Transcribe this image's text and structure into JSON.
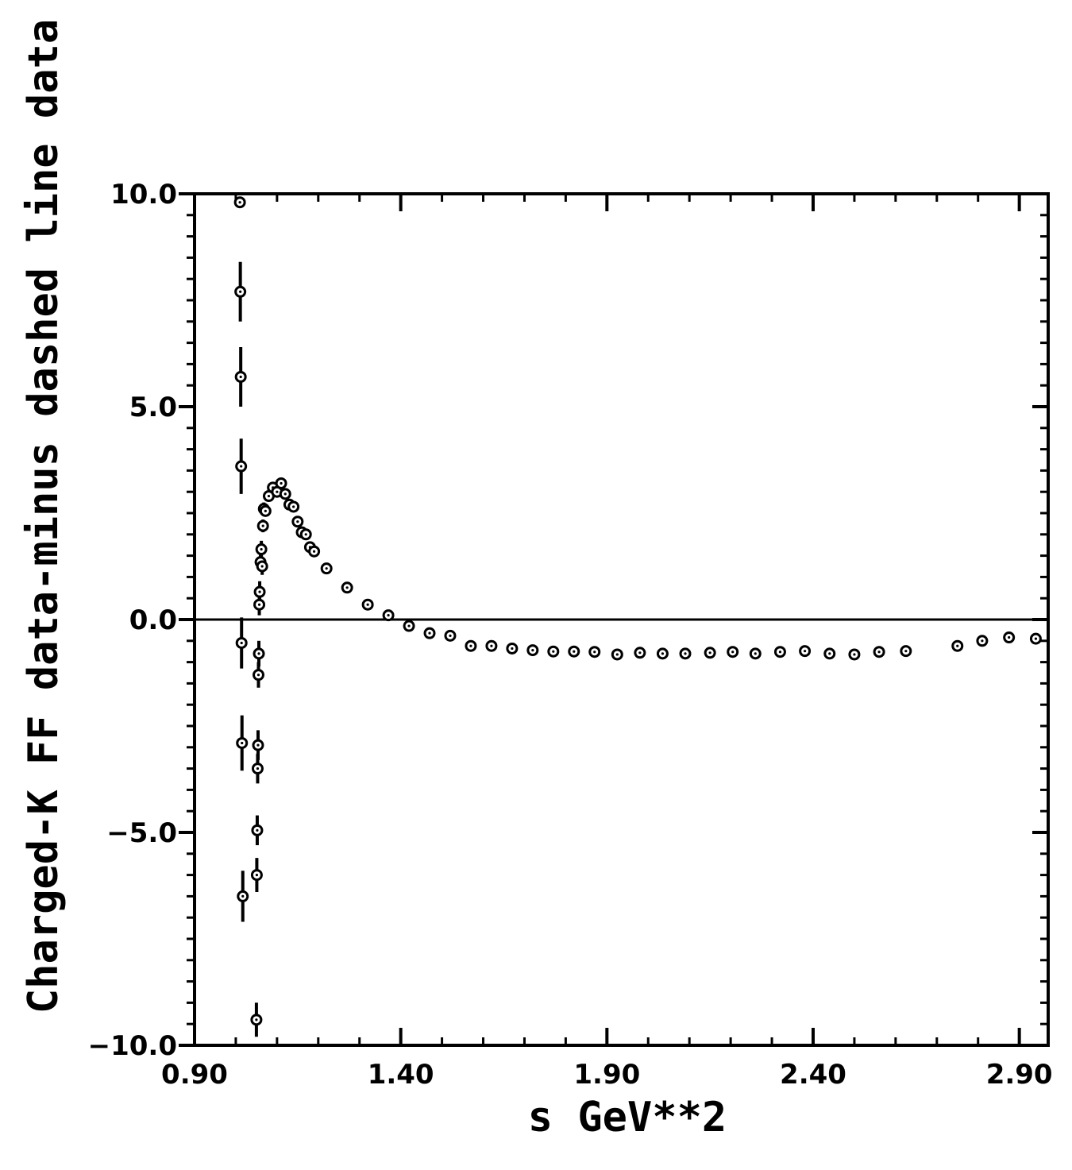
{
  "chart_data": {
    "type": "scatter",
    "title": "",
    "xlabel": "s GeV**2",
    "ylabel": "Charged-K FF data-minus dashed line data",
    "xlim": [
      0.9,
      2.97
    ],
    "ylim": [
      -10.0,
      10.0
    ],
    "x_ticks": [
      0.9,
      1.4,
      1.9,
      2.4,
      2.9
    ],
    "x_tick_labels": [
      "0.90",
      "1.40",
      "1.90",
      "2.40",
      "2.90"
    ],
    "y_ticks": [
      10.0,
      5.0,
      0.0,
      -5.0,
      -10.0
    ],
    "y_tick_labels": [
      "10.0",
      "5.0",
      "0.0",
      "−5.0",
      "−10.0"
    ],
    "grid": false,
    "legend": "none",
    "reference_line_y": 0.0,
    "marker_color": "#000000",
    "series": [
      {
        "points": [
          {
            "x": 1.01,
            "y": 9.8,
            "err": 0
          },
          {
            "x": 1.011,
            "y": 7.7,
            "err": 0.7
          },
          {
            "x": 1.012,
            "y": 5.7,
            "err": 0.7
          },
          {
            "x": 1.013,
            "y": 3.6,
            "err": 0.65
          },
          {
            "x": 1.014,
            "y": -0.55,
            "err": 0.6
          },
          {
            "x": 1.015,
            "y": -2.9,
            "err": 0.65
          },
          {
            "x": 1.017,
            "y": -6.5,
            "err": 0.6
          },
          {
            "x": 1.05,
            "y": -9.4,
            "err": 0.4
          },
          {
            "x": 1.051,
            "y": -6.0,
            "err": 0.4
          },
          {
            "x": 1.052,
            "y": -4.95,
            "err": 0.35
          },
          {
            "x": 1.053,
            "y": -3.5,
            "err": 0.35
          },
          {
            "x": 1.054,
            "y": -2.95,
            "err": 0.35
          },
          {
            "x": 1.055,
            "y": -1.3,
            "err": 0.3
          },
          {
            "x": 1.056,
            "y": -0.8,
            "err": 0.3
          },
          {
            "x": 1.057,
            "y": 0.35,
            "err": 0.25
          },
          {
            "x": 1.058,
            "y": 0.65,
            "err": 0.25
          },
          {
            "x": 1.06,
            "y": 1.35,
            "err": 0.2
          },
          {
            "x": 1.062,
            "y": 1.65,
            "err": 0.2
          },
          {
            "x": 1.064,
            "y": 1.25,
            "err": 0.2
          },
          {
            "x": 1.066,
            "y": 2.2,
            "err": 0.15
          },
          {
            "x": 1.068,
            "y": 2.6,
            "err": 0.15
          },
          {
            "x": 1.072,
            "y": 2.55,
            "err": 0.1
          },
          {
            "x": 1.08,
            "y": 2.9,
            "err": 0.1
          },
          {
            "x": 1.09,
            "y": 3.1,
            "err": 0.1
          },
          {
            "x": 1.1,
            "y": 3.0,
            "err": 0.1
          },
          {
            "x": 1.11,
            "y": 3.2,
            "err": 0.1
          },
          {
            "x": 1.12,
            "y": 2.95,
            "err": 0.1
          },
          {
            "x": 1.13,
            "y": 2.7,
            "err": 0.1
          },
          {
            "x": 1.14,
            "y": 2.65,
            "err": 0.1
          },
          {
            "x": 1.15,
            "y": 2.3,
            "err": 0.1
          },
          {
            "x": 1.16,
            "y": 2.05,
            "err": 0.1
          },
          {
            "x": 1.17,
            "y": 2.0,
            "err": 0.1
          },
          {
            "x": 1.18,
            "y": 1.7,
            "err": 0.1
          },
          {
            "x": 1.19,
            "y": 1.6,
            "err": 0.1
          },
          {
            "x": 1.22,
            "y": 1.2,
            "err": 0.05
          },
          {
            "x": 1.27,
            "y": 0.75,
            "err": 0.05
          },
          {
            "x": 1.32,
            "y": 0.35,
            "err": 0.05
          },
          {
            "x": 1.37,
            "y": 0.1,
            "err": 0.05
          },
          {
            "x": 1.42,
            "y": -0.15,
            "err": 0.05
          },
          {
            "x": 1.47,
            "y": -0.32,
            "err": 0.05
          },
          {
            "x": 1.52,
            "y": -0.38,
            "err": 0.05
          },
          {
            "x": 1.57,
            "y": -0.62,
            "err": 0.05
          },
          {
            "x": 1.62,
            "y": -0.62,
            "err": 0.05
          },
          {
            "x": 1.67,
            "y": -0.68,
            "err": 0.05
          },
          {
            "x": 1.72,
            "y": -0.72,
            "err": 0.05
          },
          {
            "x": 1.77,
            "y": -0.75,
            "err": 0.05
          },
          {
            "x": 1.82,
            "y": -0.75,
            "err": 0.05
          },
          {
            "x": 1.87,
            "y": -0.76,
            "err": 0.05
          },
          {
            "x": 1.925,
            "y": -0.82,
            "err": 0.05
          },
          {
            "x": 1.98,
            "y": -0.78,
            "err": 0.05
          },
          {
            "x": 2.035,
            "y": -0.8,
            "err": 0.05
          },
          {
            "x": 2.09,
            "y": -0.8,
            "err": 0.05
          },
          {
            "x": 2.15,
            "y": -0.78,
            "err": 0.05
          },
          {
            "x": 2.205,
            "y": -0.76,
            "err": 0.05
          },
          {
            "x": 2.26,
            "y": -0.8,
            "err": 0.05
          },
          {
            "x": 2.32,
            "y": -0.76,
            "err": 0.05
          },
          {
            "x": 2.38,
            "y": -0.74,
            "err": 0.05
          },
          {
            "x": 2.44,
            "y": -0.8,
            "err": 0.05
          },
          {
            "x": 2.5,
            "y": -0.82,
            "err": 0.05
          },
          {
            "x": 2.56,
            "y": -0.76,
            "err": 0.05
          },
          {
            "x": 2.625,
            "y": -0.74,
            "err": 0.05
          },
          {
            "x": 2.75,
            "y": -0.62,
            "err": 0.05
          },
          {
            "x": 2.81,
            "y": -0.5,
            "err": 0.05
          },
          {
            "x": 2.875,
            "y": -0.42,
            "err": 0.05
          },
          {
            "x": 2.94,
            "y": -0.45,
            "err": 0.05
          }
        ]
      }
    ]
  }
}
